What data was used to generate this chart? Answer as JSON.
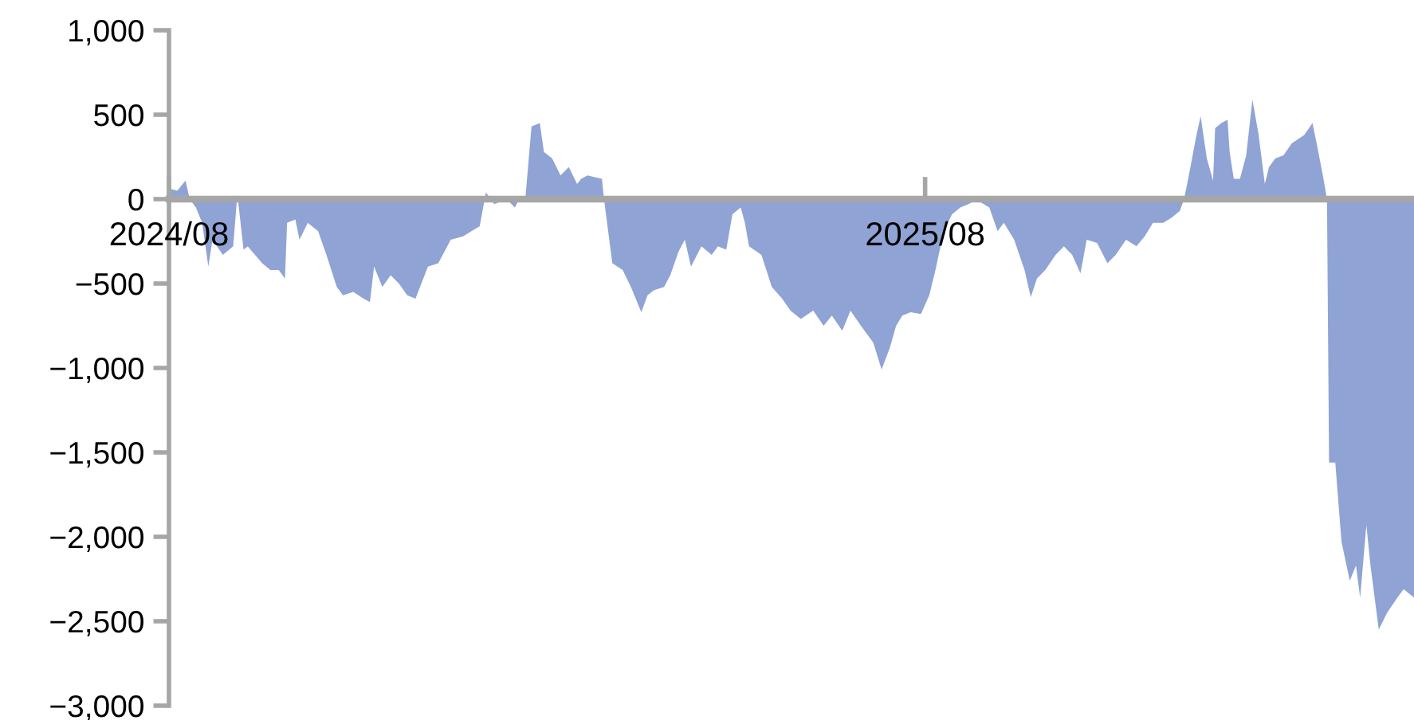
{
  "chart_data": {
    "type": "area",
    "xlim": [
      "2024-08-01",
      "2026-03-25"
    ],
    "ylim": [
      -3000,
      1000
    ],
    "xticks": [
      {
        "value": "2024-08-01",
        "label": "2024/08"
      },
      {
        "value": "2025-08-01",
        "label": "2025/08"
      }
    ],
    "yticks": [
      {
        "value": -3000,
        "label": "−3,000"
      },
      {
        "value": -2500,
        "label": "−2,500"
      },
      {
        "value": -2000,
        "label": "−2,000"
      },
      {
        "value": -1500,
        "label": "−1,500"
      },
      {
        "value": -1000,
        "label": "−1,000"
      },
      {
        "value": -500,
        "label": "−500"
      },
      0,
      500,
      {
        "value": 1000,
        "label": "1,000"
      }
    ],
    "grid": false,
    "series": [
      {
        "color": "#8fa3d4",
        "x": [
          "2024-08-01",
          "2024-08-02",
          "2024-08-05",
          "2024-08-09",
          "2024-08-11",
          "2024-08-14",
          "2024-08-17",
          "2024-08-20",
          "2024-08-22",
          "2024-08-27",
          "2024-09-01",
          "2024-09-03",
          "2024-09-06",
          "2024-09-08",
          "2024-09-15",
          "2024-09-19",
          "2024-09-23",
          "2024-09-26",
          "2024-09-27",
          "2024-10-01",
          "2024-10-03",
          "2024-10-07",
          "2024-10-12",
          "2024-10-16",
          "2024-10-21",
          "2024-10-24",
          "2024-10-29",
          "2024-11-03",
          "2024-11-06",
          "2024-11-08",
          "2024-11-12",
          "2024-11-16",
          "2024-11-20",
          "2024-11-24",
          "2024-11-28",
          "2024-12-04",
          "2024-12-09",
          "2024-12-15",
          "2024-12-21",
          "2024-12-25",
          "2024-12-29",
          "2025-01-01",
          "2025-01-05",
          "2025-01-11",
          "2025-01-15",
          "2025-01-17",
          "2025-01-20",
          "2025-01-23",
          "2025-01-27",
          "2025-01-29",
          "2025-02-02",
          "2025-02-06",
          "2025-02-10",
          "2025-02-14",
          "2025-02-16",
          "2025-02-19",
          "2025-02-26",
          "2025-02-27",
          "2025-03-01",
          "2025-03-03",
          "2025-03-08",
          "2025-03-12",
          "2025-03-17",
          "2025-03-20",
          "2025-03-23",
          "2025-03-28",
          "2025-03-31",
          "2025-04-04",
          "2025-04-07",
          "2025-04-10",
          "2025-04-15",
          "2025-04-20",
          "2025-04-23",
          "2025-04-27",
          "2025-04-30",
          "2025-05-04",
          "2025-05-06",
          "2025-05-08",
          "2025-05-14",
          "2025-05-19",
          "2025-05-24",
          "2025-05-28",
          "2025-06-02",
          "2025-06-08",
          "2025-06-13",
          "2025-06-17",
          "2025-06-22",
          "2025-06-26",
          "2025-07-01",
          "2025-07-07",
          "2025-07-11",
          "2025-07-15",
          "2025-07-18",
          "2025-07-21",
          "2025-07-25",
          "2025-07-30",
          "2025-08-03",
          "2025-08-06",
          "2025-08-10",
          "2025-08-14",
          "2025-08-18",
          "2025-08-22",
          "2025-08-26",
          "2025-08-28",
          "2025-09-01",
          "2025-09-05",
          "2025-09-08",
          "2025-09-13",
          "2025-09-18",
          "2025-09-21",
          "2025-09-24",
          "2025-09-28",
          "2025-10-03",
          "2025-10-07",
          "2025-10-11",
          "2025-10-15",
          "2025-10-18",
          "2025-10-23",
          "2025-10-28",
          "2025-11-01",
          "2025-11-06",
          "2025-11-11",
          "2025-11-15",
          "2025-11-19",
          "2025-11-24",
          "2025-11-28",
          "2025-12-02",
          "2025-12-04",
          "2025-12-06",
          "2025-12-10",
          "2025-12-12",
          "2025-12-15",
          "2025-12-18",
          "2025-12-19",
          "2025-12-22",
          "2025-12-25",
          "2025-12-26",
          "2025-12-28",
          "2025-12-31",
          "2026-01-03",
          "2026-01-06",
          "2026-01-09",
          "2026-01-12",
          "2026-01-14",
          "2026-01-17",
          "2026-01-21",
          "2026-01-25",
          "2026-01-31",
          "2026-02-04",
          "2026-02-06",
          "2026-02-09",
          "2026-02-11",
          "2026-02-12",
          "2026-02-15",
          "2026-02-18",
          "2026-02-22",
          "2026-02-25",
          "2026-02-27",
          "2026-03-02",
          "2026-03-04",
          "2026-03-08",
          "2026-03-12",
          "2026-03-17",
          "2026-03-20",
          "2026-03-25"
        ],
        "values": [
          -100,
          60,
          50,
          110,
          0,
          -50,
          -140,
          -400,
          -240,
          -330,
          -280,
          30,
          -300,
          -280,
          -380,
          -420,
          -420,
          -470,
          -140,
          -120,
          -240,
          -140,
          -190,
          -330,
          -520,
          -570,
          -550,
          -590,
          -610,
          -400,
          -520,
          -450,
          -500,
          -570,
          -590,
          -400,
          -380,
          -240,
          -220,
          -190,
          -160,
          40,
          -30,
          0,
          -50,
          0,
          0,
          430,
          450,
          280,
          240,
          140,
          190,
          90,
          120,
          140,
          120,
          0,
          -190,
          -380,
          -420,
          -520,
          -670,
          -570,
          -540,
          -520,
          -450,
          -310,
          -240,
          -400,
          -280,
          -330,
          -280,
          -300,
          -90,
          -50,
          -140,
          -280,
          -330,
          -520,
          -590,
          -660,
          -710,
          -660,
          -750,
          -690,
          -780,
          -660,
          -750,
          -850,
          -1010,
          -880,
          -750,
          -690,
          -670,
          -680,
          -570,
          -420,
          -190,
          -90,
          -50,
          -30,
          0,
          -20,
          -50,
          -190,
          -140,
          -240,
          -420,
          -580,
          -470,
          -420,
          -330,
          -280,
          -330,
          -440,
          -240,
          -260,
          -380,
          -330,
          -240,
          -280,
          -220,
          -140,
          -140,
          -110,
          -70,
          0,
          120,
          380,
          490,
          240,
          110,
          420,
          450,
          470,
          280,
          120,
          120,
          260,
          590,
          380,
          90,
          190,
          240,
          260,
          330,
          380,
          450,
          330,
          140,
          0,
          -1560,
          -1560,
          -2030,
          -2260,
          -2170,
          -2360,
          -1930,
          -2170,
          -2550,
          -2450,
          -2360,
          -2310,
          -2360
        ]
      }
    ]
  }
}
